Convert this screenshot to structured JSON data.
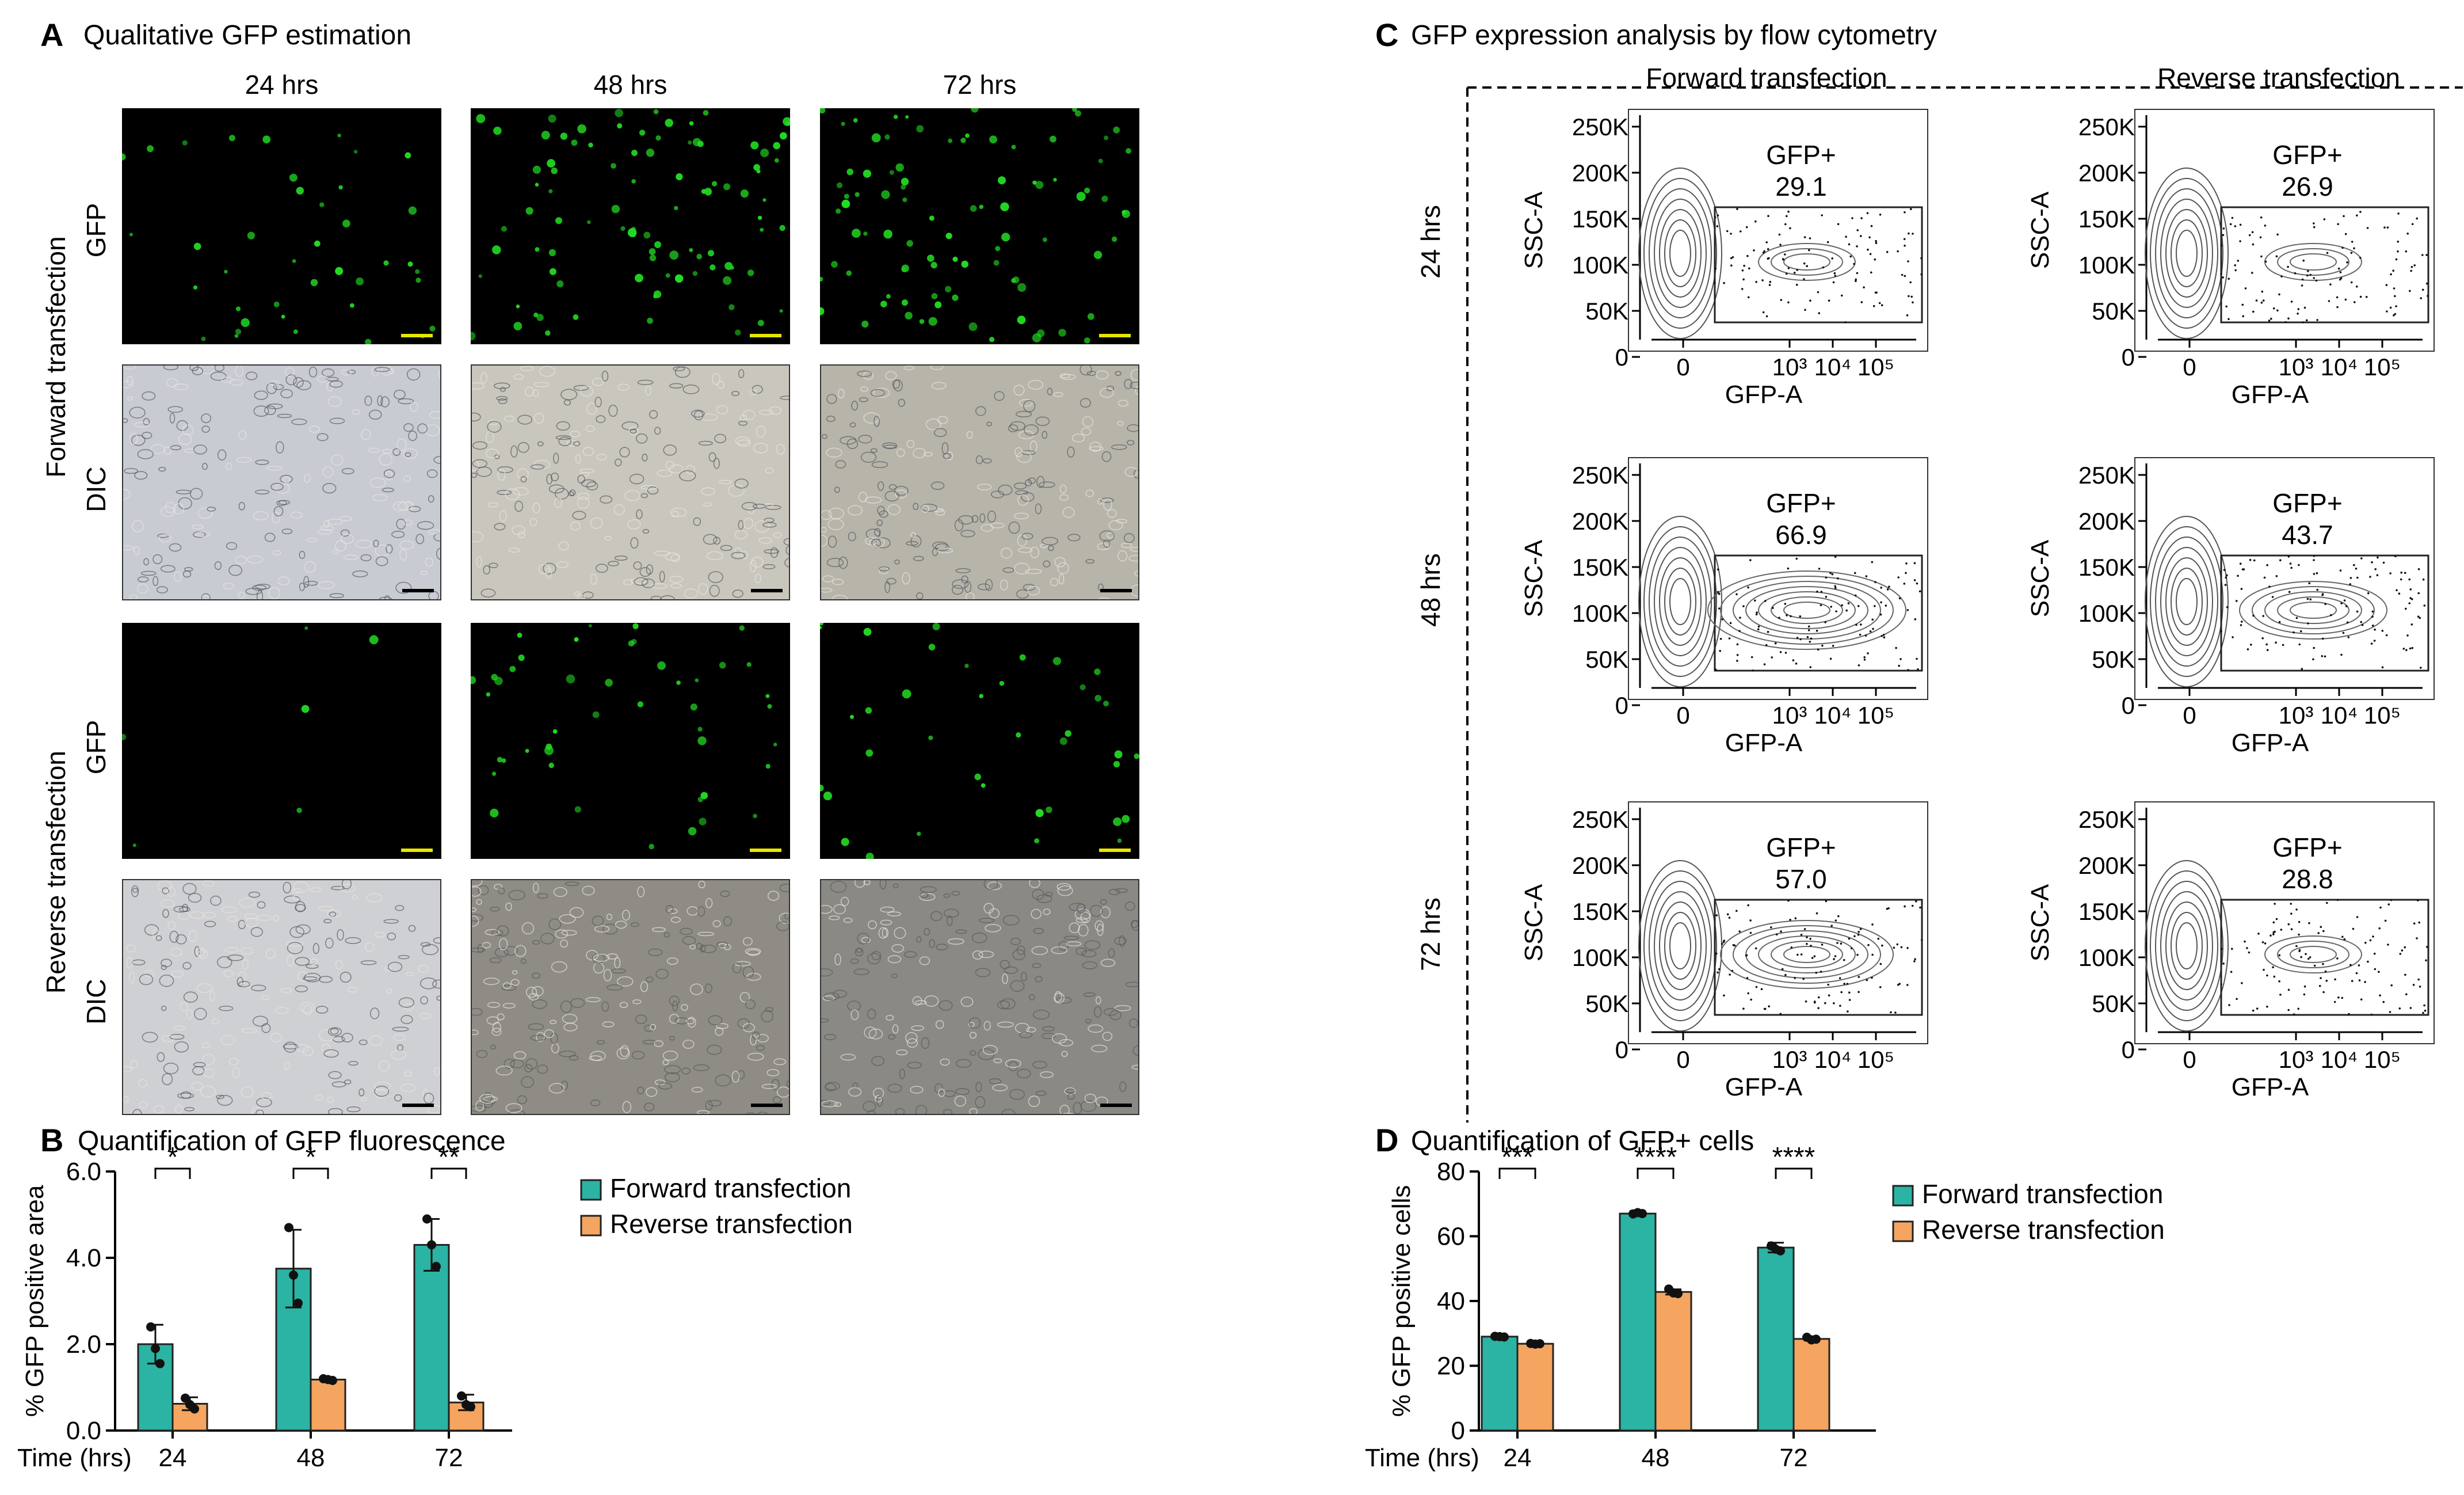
{
  "panel_a": {
    "letter": "A",
    "title": "Qualitative GFP estimation",
    "time_headers": [
      "24 hrs",
      "48 hrs",
      "72 hrs"
    ],
    "groups": [
      "Forward transfection",
      "Reverse transfection"
    ],
    "row_labels": [
      "GFP",
      "DIC",
      "GFP",
      "DIC"
    ],
    "colors": {
      "gfp": "#22dd22",
      "scale_gfp": "#e6e600",
      "scale_dic": "#000000",
      "dic_fwd": "#c3c6cb",
      "dic_rev": "#8a8a84"
    }
  },
  "panel_b": {
    "letter": "B",
    "title": "Quantification of GFP fluorescence"
  },
  "panel_c": {
    "letter": "C",
    "title": "GFP expression analysis by flow cytometry",
    "col_headers": [
      "Forward transfection",
      "Reverse transfection"
    ],
    "row_headers": [
      "24 hrs",
      "48 hrs",
      "72 hrs"
    ],
    "gate_label": "GFP+",
    "y_axis_label": "SSC-A",
    "x_axis_label": "GFP-A",
    "y_ticks": [
      "250K",
      "200K",
      "150K",
      "100K",
      "50K",
      "0"
    ],
    "x_ticks": [
      "0",
      "10³",
      "10⁴",
      "10⁵"
    ],
    "values": [
      [
        "29.1",
        "26.9"
      ],
      [
        "66.9",
        "43.7"
      ],
      [
        "57.0",
        "28.8"
      ]
    ]
  },
  "panel_d": {
    "letter": "D",
    "title": "Quantification of GFP+ cells"
  },
  "chart_data": [
    {
      "type": "bar",
      "panel": "B",
      "title": "Quantification of GFP fluorescence",
      "ylabel": "% GFP positive area",
      "xlabel": "Time (hrs)",
      "categories": [
        "24",
        "48",
        "72"
      ],
      "ylim": [
        0,
        6
      ],
      "yticks": [
        "0.0",
        "2.0",
        "4.0",
        "6.0"
      ],
      "series": [
        {
          "name": "Forward transfection",
          "color": "#2bb3a3",
          "values": [
            2.0,
            3.75,
            4.3
          ],
          "errors": [
            0.45,
            0.9,
            0.6
          ],
          "points": [
            [
              2.4,
              1.9,
              1.55
            ],
            [
              4.7,
              3.6,
              2.95
            ],
            [
              4.9,
              4.3,
              3.8
            ]
          ]
        },
        {
          "name": "Reverse transfection",
          "color": "#f5a55f",
          "values": [
            0.62,
            1.18,
            0.65
          ],
          "errors": [
            0.15,
            0.03,
            0.18
          ],
          "points": [
            [
              0.75,
              0.6,
              0.5
            ],
            [
              1.2,
              1.18,
              1.16
            ],
            [
              0.8,
              0.6,
              0.55
            ]
          ]
        }
      ],
      "significance": [
        "*",
        "*",
        "**"
      ]
    },
    {
      "type": "bar",
      "panel": "D",
      "title": "Quantification of GFP+ cells",
      "ylabel": "% GFP positive cells",
      "xlabel": "Time (hrs)",
      "categories": [
        "24",
        "48",
        "72"
      ],
      "ylim": [
        0,
        80
      ],
      "yticks": [
        "0",
        "20",
        "40",
        "60",
        "80"
      ],
      "series": [
        {
          "name": "Forward transfection",
          "color": "#2bb3a3",
          "values": [
            29.0,
            67.0,
            56.5
          ],
          "errors": [
            0.4,
            0.8,
            1.5
          ],
          "points": [
            [
              29.1,
              29.0,
              28.9
            ],
            [
              66.9,
              67.3,
              67.0
            ],
            [
              57.0,
              56.0,
              55.5
            ]
          ]
        },
        {
          "name": "Reverse transfection",
          "color": "#f5a55f",
          "values": [
            26.8,
            42.8,
            28.3
          ],
          "errors": [
            0.3,
            0.8,
            0.4
          ],
          "points": [
            [
              26.9,
              26.7,
              26.8
            ],
            [
              43.7,
              42.5,
              42.3
            ],
            [
              28.8,
              28.0,
              28.2
            ]
          ]
        }
      ],
      "significance": [
        "***",
        "****",
        "****"
      ]
    }
  ]
}
